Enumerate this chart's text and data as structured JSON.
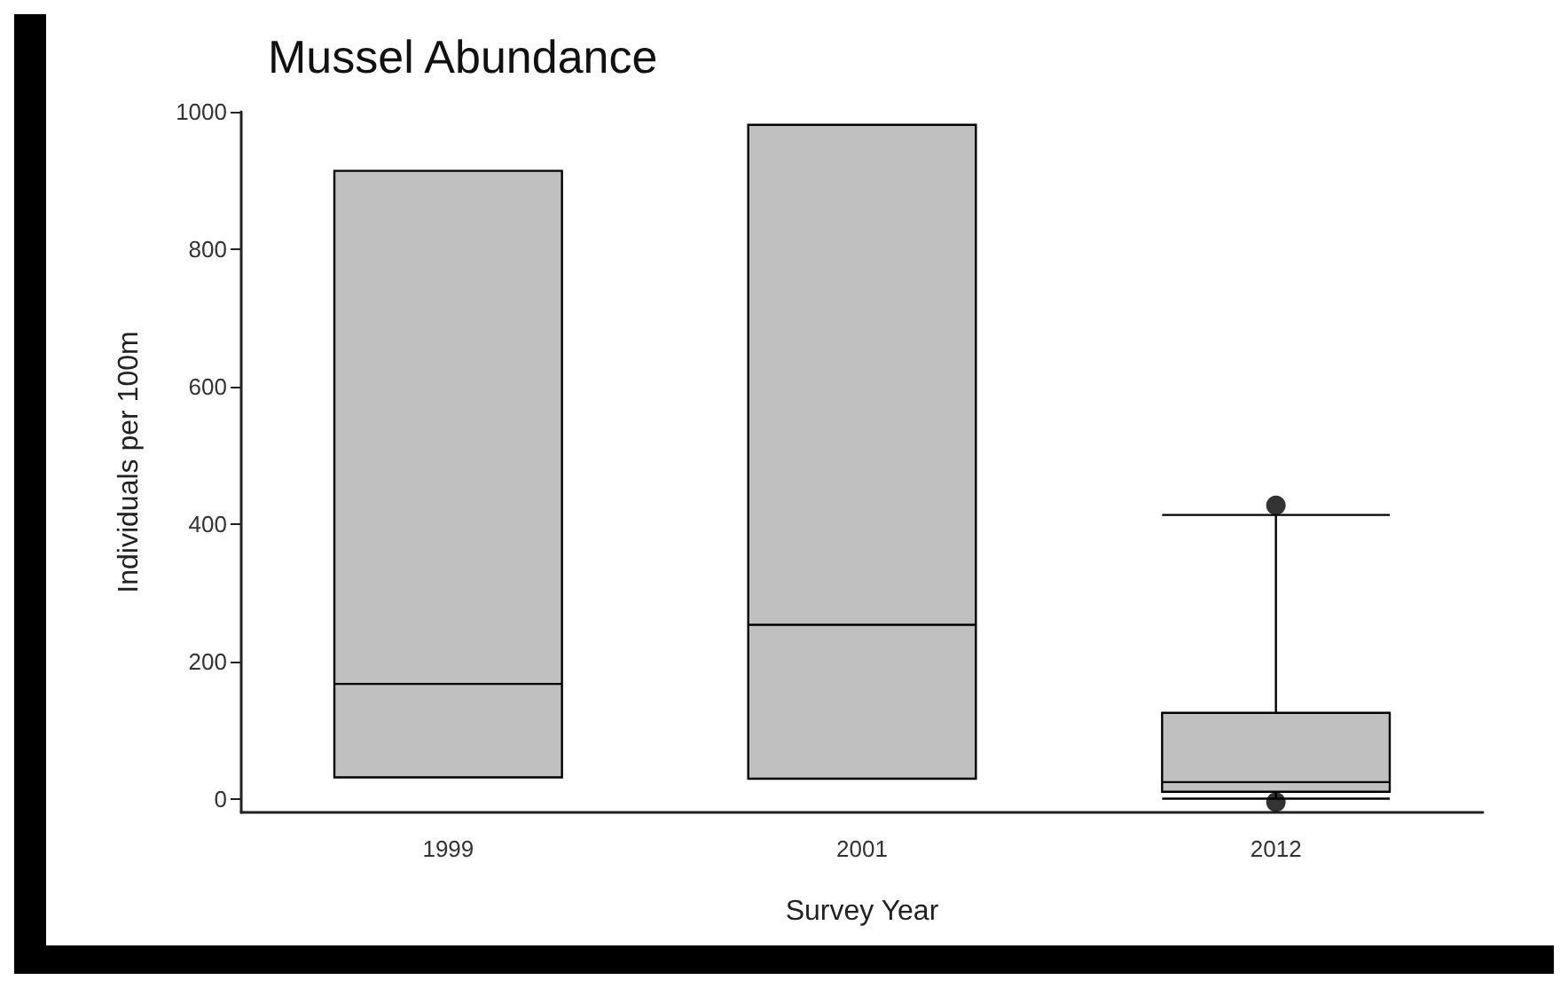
{
  "chart_data": {
    "type": "box",
    "title": "Mussel Abundance",
    "xlabel": "Survey Year",
    "ylabel": "Individuals per 100m",
    "categories": [
      "1999",
      "2001",
      "2012"
    ],
    "boxes": [
      {
        "low": 31,
        "q1": 31,
        "median": 167,
        "q3": 914,
        "high": 914
      },
      {
        "low": 29,
        "q1": 29,
        "median": 253,
        "q3": 981,
        "high": 981
      },
      {
        "low": 0,
        "q1": 10,
        "median": 24,
        "q3": 125,
        "high": 413,
        "outliers": [
          427,
          -5
        ]
      }
    ],
    "color": "#c0c0c0",
    "ylim": [
      -20,
      1000
    ],
    "yticks": [
      0,
      200,
      400,
      600,
      800,
      1000
    ],
    "grid": false,
    "legend": false
  }
}
